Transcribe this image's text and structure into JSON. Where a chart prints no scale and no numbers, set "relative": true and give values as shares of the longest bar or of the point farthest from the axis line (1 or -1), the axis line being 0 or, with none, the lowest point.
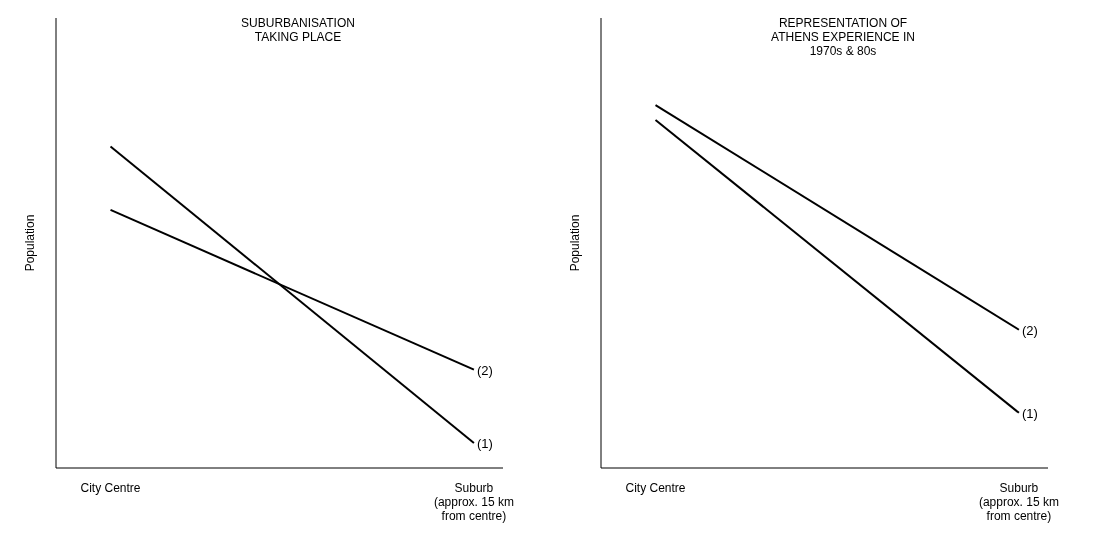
{
  "chart_data": [
    {
      "type": "line",
      "title": "SUBURBANISATION\nTAKING PLACE",
      "ylabel": "Population",
      "relative": true,
      "categories": [
        "City Centre",
        "Suburb\n(approx. 15 km\nfrom centre)"
      ],
      "series": [
        {
          "name": "(1)",
          "color": "#000000",
          "values": [
            1,
            0.078
          ]
        },
        {
          "name": "(2)",
          "color": "#000000",
          "values": [
            0.803,
            0.306
          ]
        }
      ],
      "grid": false,
      "legend": false,
      "marker": "none"
    },
    {
      "type": "line",
      "title": "REPRESENTATION OF\nATHENS EXPERIENCE IN\n1970s & 80s",
      "ylabel": "Population",
      "relative": true,
      "categories": [
        "City Centre",
        "Suburb\n(approx. 15 km\nfrom centre)"
      ],
      "series": [
        {
          "name": "(1)",
          "color": "#000000",
          "values": [
            0.959,
            0.152
          ]
        },
        {
          "name": "(2)",
          "color": "#000000",
          "values": [
            1,
            0.381
          ]
        }
      ],
      "grid": false,
      "legend": false,
      "marker": "none"
    }
  ]
}
